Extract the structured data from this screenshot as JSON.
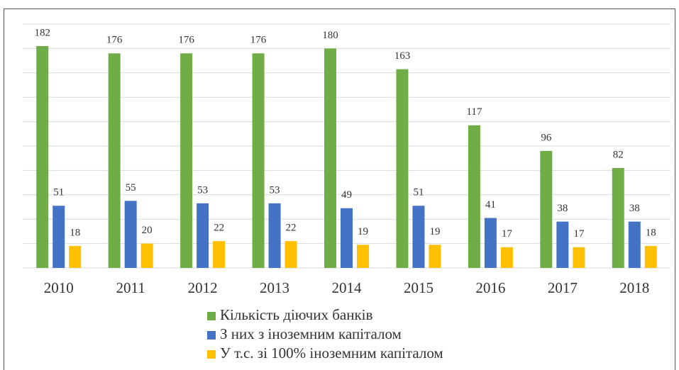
{
  "chart_data": {
    "type": "bar",
    "categories": [
      "2010",
      "2011",
      "2012",
      "2013",
      "2014",
      "2015",
      "2016",
      "2017",
      "2018"
    ],
    "series": [
      {
        "name": "Кількість діючих банків",
        "color": "#70ad47",
        "values": [
          182,
          176,
          176,
          176,
          180,
          163,
          117,
          96,
          82
        ]
      },
      {
        "name": "З них з іноземним капіталом",
        "color": "#4472c4",
        "values": [
          51,
          55,
          53,
          53,
          49,
          51,
          41,
          38,
          38
        ]
      },
      {
        "name": "У т.с. зі 100% іноземним капіталом",
        "color": "#ffc000",
        "values": [
          18,
          20,
          22,
          22,
          19,
          19,
          17,
          17,
          18
        ]
      }
    ],
    "ylim": [
      0,
      200
    ],
    "yticks": [
      0,
      20,
      40,
      60,
      80,
      100,
      120,
      140,
      160,
      180,
      200
    ],
    "grid": true
  }
}
